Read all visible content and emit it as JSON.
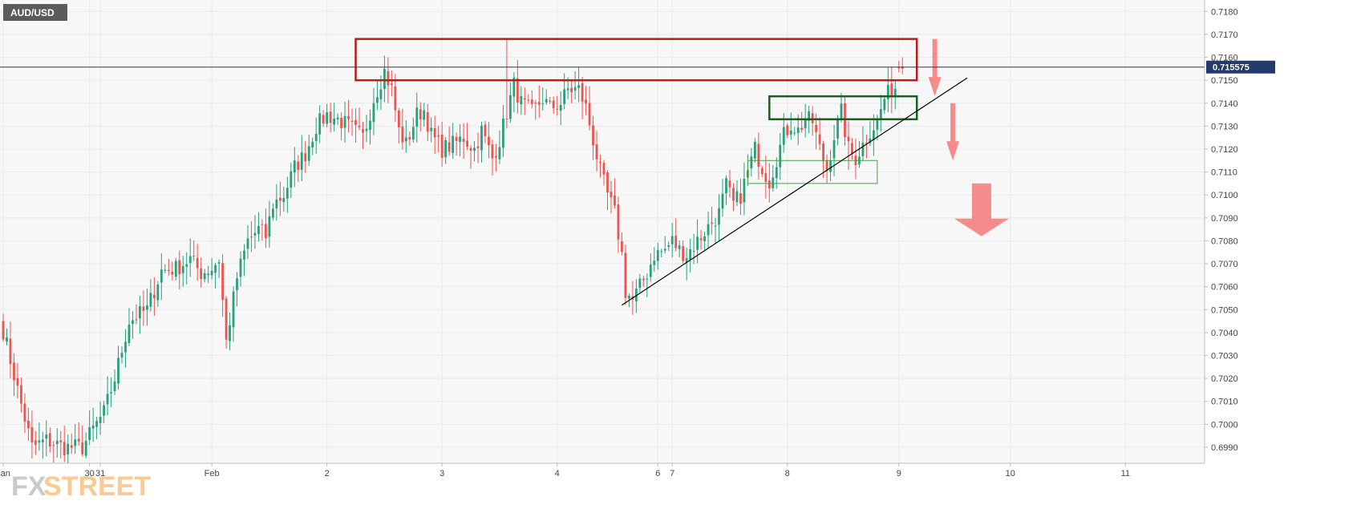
{
  "symbol": "AUD/USD",
  "watermark": {
    "part1": "FX",
    "part2": "STREET"
  },
  "current_price_label": "0.715575",
  "colors": {
    "up": "#26a17b",
    "down": "#ef5350",
    "resistance_box": "#b71c1c",
    "consolidation_box": "#1b5e20",
    "support_box": "#43a047",
    "trendline": "#000000",
    "arrows": "#f48080",
    "price_line": "#233a6b",
    "grid": "#e7e9ee",
    "plot_bg": "#f7f7f7"
  },
  "chart_data": {
    "type": "candlestick",
    "title": "AUD/USD",
    "ylim": [
      0.6983,
      0.7185
    ],
    "y_ticks": [
      0.699,
      0.7,
      0.701,
      0.702,
      0.703,
      0.704,
      0.705,
      0.706,
      0.707,
      0.708,
      0.709,
      0.71,
      0.711,
      0.712,
      0.713,
      0.714,
      0.715,
      0.716,
      0.717,
      0.718
    ],
    "y_tick_labels": [
      "0.6990",
      "0.7000",
      "0.7010",
      "0.7020",
      "0.7030",
      "0.7040",
      "0.7050",
      "0.7060",
      "0.7070",
      "0.7080",
      "0.7090",
      "0.7100",
      "0.7110",
      "0.7120",
      "0.7130",
      "0.7140",
      "0.7150",
      "0.7160",
      "0.7170",
      "0.7180"
    ],
    "x_tick_labels": [
      {
        "label": "Jan",
        "x": 0
      },
      {
        "label": "30",
        "x": 24
      },
      {
        "label": "31",
        "x": 27
      },
      {
        "label": "Feb",
        "x": 58
      },
      {
        "label": "2",
        "x": 90
      },
      {
        "label": "3",
        "x": 122
      },
      {
        "label": "4",
        "x": 154
      },
      {
        "label": "6",
        "x": 182
      },
      {
        "label": "7",
        "x": 186
      },
      {
        "label": "8",
        "x": 218
      },
      {
        "label": "9",
        "x": 249
      },
      {
        "label": "10",
        "x": 280
      },
      {
        "label": "11",
        "x": 312
      }
    ],
    "x_range": [
      0,
      334
    ],
    "current_price": 0.715575,
    "waypoints": [
      [
        0,
        0.7041
      ],
      [
        4,
        0.7015
      ],
      [
        8,
        0.699
      ],
      [
        12,
        0.6993
      ],
      [
        17,
        0.699
      ],
      [
        22,
        0.699
      ],
      [
        25,
        0.6998
      ],
      [
        28,
        0.7005
      ],
      [
        31,
        0.702
      ],
      [
        35,
        0.7045
      ],
      [
        40,
        0.705
      ],
      [
        44,
        0.7067
      ],
      [
        48,
        0.7068
      ],
      [
        52,
        0.7072
      ],
      [
        55,
        0.7066
      ],
      [
        58,
        0.7068
      ],
      [
        60,
        0.7072
      ],
      [
        62,
        0.7036
      ],
      [
        65,
        0.7064
      ],
      [
        68,
        0.708
      ],
      [
        71,
        0.7085
      ],
      [
        73,
        0.7082
      ],
      [
        75,
        0.7096
      ],
      [
        78,
        0.71
      ],
      [
        81,
        0.7112
      ],
      [
        84,
        0.7118
      ],
      [
        87,
        0.713
      ],
      [
        90,
        0.7135
      ],
      [
        93,
        0.7133
      ],
      [
        96,
        0.713
      ],
      [
        100,
        0.7125
      ],
      [
        103,
        0.7142
      ],
      [
        106,
        0.7154
      ],
      [
        108,
        0.7146
      ],
      [
        110,
        0.7128
      ],
      [
        112,
        0.7122
      ],
      [
        115,
        0.7135
      ],
      [
        117,
        0.7137
      ],
      [
        119,
        0.7126
      ],
      [
        122,
        0.712
      ],
      [
        125,
        0.7122
      ],
      [
        128,
        0.7125
      ],
      [
        131,
        0.712
      ],
      [
        133,
        0.7128
      ],
      [
        136,
        0.7116
      ],
      [
        138,
        0.7124
      ],
      [
        140,
        0.7136
      ],
      [
        142,
        0.7148
      ],
      [
        144,
        0.714
      ],
      [
        147,
        0.7136
      ],
      [
        150,
        0.7142
      ],
      [
        152,
        0.7138
      ],
      [
        155,
        0.714
      ],
      [
        157,
        0.7146
      ],
      [
        160,
        0.7146
      ],
      [
        162,
        0.7138
      ],
      [
        164,
        0.7124
      ],
      [
        166,
        0.711
      ],
      [
        168,
        0.71
      ],
      [
        170,
        0.7092
      ],
      [
        172,
        0.7074
      ],
      [
        173,
        0.7058
      ],
      [
        175,
        0.7054
      ],
      [
        177,
        0.706
      ],
      [
        179,
        0.7066
      ],
      [
        181,
        0.7074
      ],
      [
        184,
        0.7076
      ],
      [
        186,
        0.708
      ],
      [
        188,
        0.7076
      ],
      [
        190,
        0.7074
      ],
      [
        193,
        0.708
      ],
      [
        196,
        0.7086
      ],
      [
        199,
        0.7092
      ],
      [
        201,
        0.7104
      ],
      [
        203,
        0.7096
      ],
      [
        205,
        0.71
      ],
      [
        207,
        0.711
      ],
      [
        209,
        0.712
      ],
      [
        211,
        0.7112
      ],
      [
        213,
        0.7106
      ],
      [
        215,
        0.7116
      ],
      [
        217,
        0.7126
      ],
      [
        219,
        0.7131
      ],
      [
        221,
        0.7128
      ],
      [
        223,
        0.7133
      ],
      [
        225,
        0.7132
      ],
      [
        227,
        0.712
      ],
      [
        229,
        0.7111
      ],
      [
        231,
        0.7126
      ],
      [
        233,
        0.7136
      ],
      [
        235,
        0.712
      ],
      [
        237,
        0.7116
      ],
      [
        239,
        0.7122
      ],
      [
        241,
        0.7128
      ],
      [
        243,
        0.7132
      ],
      [
        245,
        0.7142
      ],
      [
        247,
        0.7146
      ],
      [
        248,
        0.7147
      ]
    ],
    "gap_candles": [
      {
        "x": 249,
        "o": 0.71557,
        "h": 0.71585,
        "l": 0.71535,
        "c": 0.71552
      },
      {
        "x": 250,
        "o": 0.7156,
        "h": 0.716,
        "l": 0.71525,
        "c": 0.7155
      }
    ],
    "wick_spikes": [
      {
        "x": 140,
        "h": 0.7168
      },
      {
        "x": 62,
        "l": 0.7033
      },
      {
        "x": 74,
        "l": 0.7077
      },
      {
        "x": 235,
        "l": 0.7111
      }
    ],
    "annotations": {
      "resistance_zone": {
        "x1": 98,
        "x2": 254,
        "y1": 0.715,
        "y2": 0.7168
      },
      "consolidation_zone": {
        "x1": 213,
        "x2": 254,
        "y1": 0.7133,
        "y2": 0.7143
      },
      "support_zone": {
        "x1": 207,
        "x2": 243,
        "y1": 0.7105,
        "y2": 0.7115
      },
      "trendline": {
        "x1": 172,
        "y1": 0.7052,
        "x2": 268,
        "y2": 0.7151
      },
      "arrows": [
        {
          "type": "thin",
          "x": 259,
          "y_top": 0.7168,
          "y_bottom": 0.7143
        },
        {
          "type": "thin",
          "x": 264,
          "y_top": 0.714,
          "y_bottom": 0.7115
        },
        {
          "type": "fat",
          "x": 272,
          "y_top": 0.7105,
          "y_bottom": 0.7082
        }
      ]
    }
  }
}
